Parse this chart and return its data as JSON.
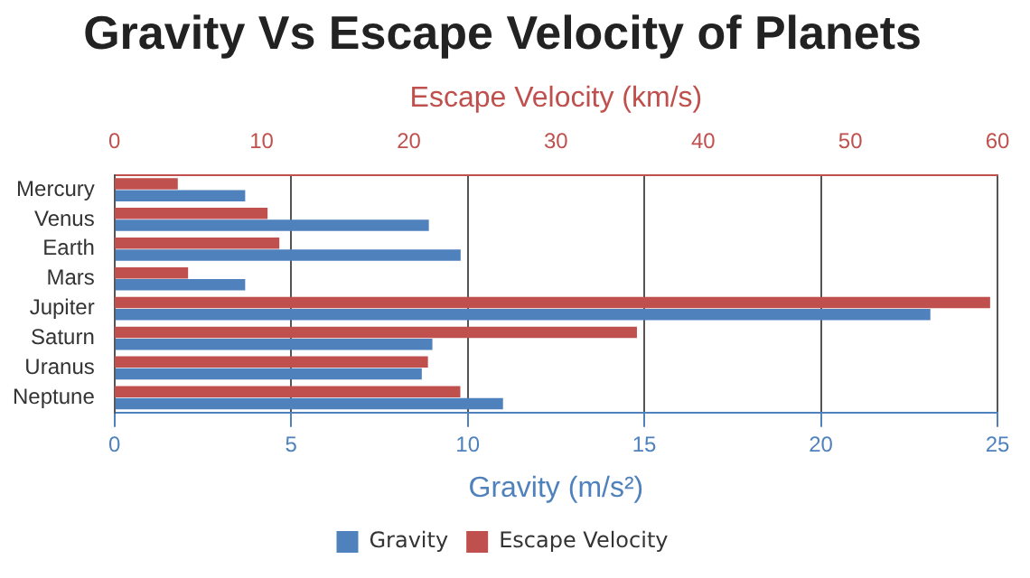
{
  "chart_data": {
    "type": "bar",
    "orientation": "horizontal",
    "title": "Gravity Vs Escape Velocity of Planets",
    "xlabel": "Gravity (m/s²)",
    "x2label": "Escape Velocity (km/s)",
    "categories": [
      "Mercury",
      "Venus",
      "Earth",
      "Mars",
      "Jupiter",
      "Saturn",
      "Uranus",
      "Neptune"
    ],
    "series": [
      {
        "name": "Escape Velocity",
        "color": "#c0504e",
        "axis": "x2",
        "values": [
          4.3,
          10.4,
          11.2,
          5.0,
          59.5,
          35.5,
          21.3,
          23.5
        ]
      },
      {
        "name": "Gravity",
        "color": "#4f81bc",
        "values": [
          3.7,
          8.9,
          9.8,
          3.7,
          23.1,
          9.0,
          8.7,
          11.0
        ]
      }
    ],
    "xlim": [
      0,
      25
    ],
    "xticks": [
      0,
      5,
      10,
      15,
      20,
      25
    ],
    "x2lim": [
      0,
      60
    ],
    "x2ticks": [
      0,
      10,
      20,
      30,
      40,
      50,
      60
    ],
    "grid": "x",
    "legend": "bottom"
  }
}
